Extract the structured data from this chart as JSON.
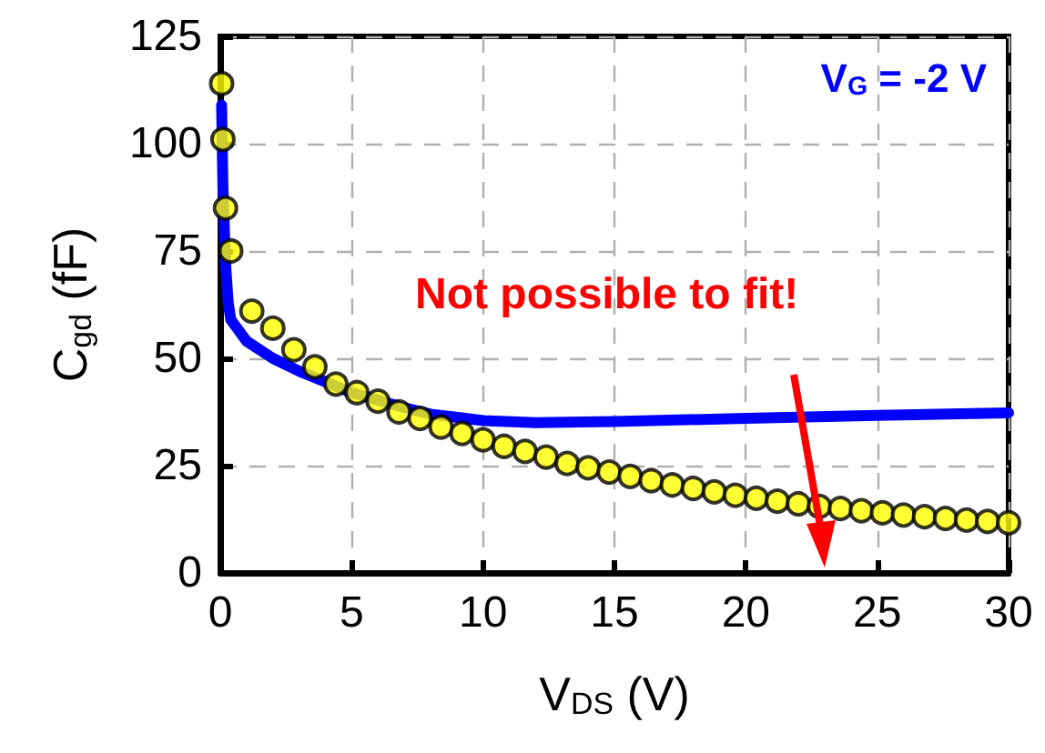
{
  "chart_data": {
    "type": "scatter",
    "xlabel": "V$_{DS}$ (V)",
    "ylabel": "C$_{gd}$ (fF)",
    "xlim": [
      0,
      30
    ],
    "xticks": [
      0,
      5,
      10,
      15,
      20,
      25,
      30
    ],
    "ylim": [
      0,
      125
    ],
    "yticks": [
      0,
      25,
      50,
      75,
      100,
      125
    ],
    "grid": true,
    "annotations": [
      "V$_{G}$ = -2 V",
      "Not possible to fit!"
    ],
    "series": [
      {
        "type": "line",
        "color": "#0000ff",
        "line_style": "solid",
        "marker": "none",
        "x": [
          0.05,
          0.1,
          0.2,
          0.3,
          0.4,
          1,
          2,
          3,
          5,
          7,
          8,
          10,
          12,
          15,
          20,
          25,
          30
        ],
        "values": [
          109,
          90,
          72,
          63,
          59,
          54,
          50,
          47,
          42,
          38.5,
          37,
          35.5,
          35,
          35.3,
          36,
          36.7,
          37.3
        ]
      },
      {
        "color": "#ffff00",
        "marker": "circle",
        "x": [
          0.05,
          0.1,
          0.2,
          0.4,
          1.2,
          2.0,
          2.8,
          3.6,
          4.4,
          5.2,
          6.0,
          6.8,
          7.6,
          8.4,
          9.2,
          10.0,
          10.8,
          11.6,
          12.4,
          13.2,
          14.0,
          14.8,
          15.6,
          16.4,
          17.2,
          18.0,
          18.8,
          19.6,
          20.4,
          21.2,
          22.0,
          22.8,
          23.6,
          24.4,
          25.2,
          26.0,
          26.8,
          27.6,
          28.4,
          29.2,
          30.0
        ],
        "values": [
          114,
          101,
          85,
          75,
          61,
          57,
          52,
          48,
          44,
          42,
          40,
          37.5,
          36,
          34,
          32.5,
          31,
          29.5,
          28.3,
          27,
          25.5,
          24.5,
          23.5,
          22.5,
          21.5,
          20.5,
          19.7,
          18.9,
          18.1,
          17.4,
          16.7,
          16.1,
          15.5,
          15,
          14.5,
          14,
          13.5,
          13.1,
          12.7,
          12.3,
          12,
          11.7
        ]
      }
    ]
  }
}
